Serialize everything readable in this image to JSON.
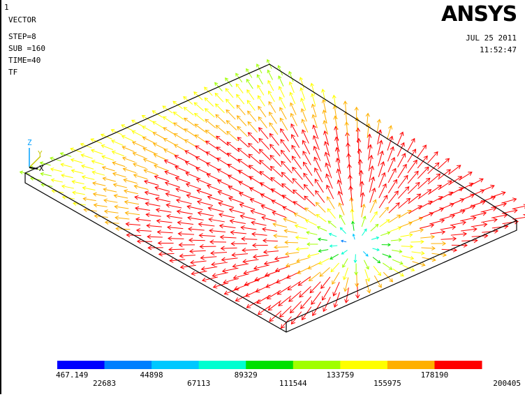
{
  "header": {
    "window_number": "1",
    "plot_type": "VECTOR",
    "step": "STEP=8",
    "sub": "SUB =160",
    "time": "TIME=40",
    "item": "TF",
    "logo": "ANSYS",
    "date": "JUL 25 2011",
    "clock": "11:52:47"
  },
  "triad": {
    "z": "Z",
    "y": "Y",
    "x": "X"
  },
  "legend": {
    "values": [
      467.149,
      22683,
      44898,
      67113,
      89329,
      111544,
      133759,
      155975,
      178190,
      200405
    ],
    "colors": [
      "#0000ff",
      "#0080ff",
      "#00c8ff",
      "#00ffd0",
      "#00e000",
      "#a0ff00",
      "#ffff00",
      "#ffb000",
      "#ff0000"
    ]
  }
}
